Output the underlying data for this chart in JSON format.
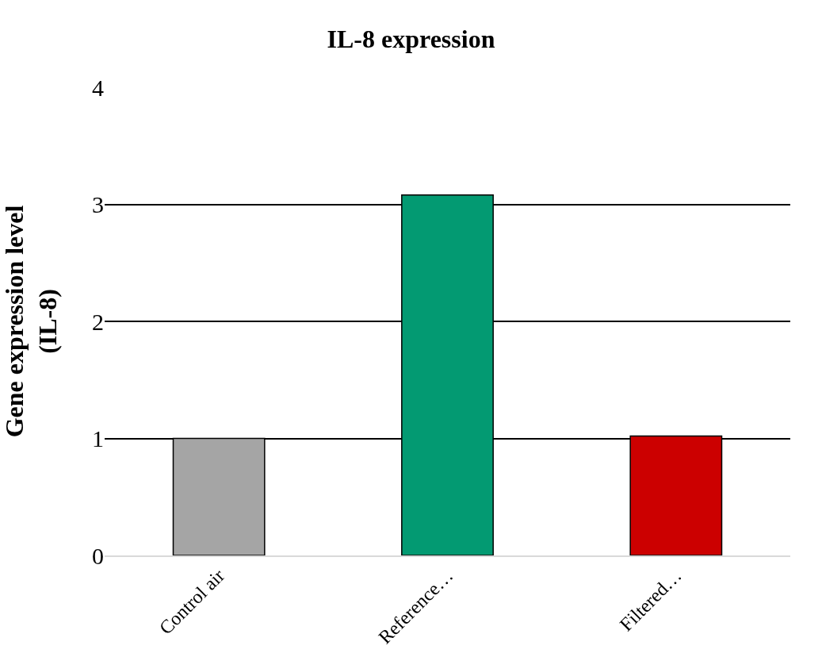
{
  "chart_data": {
    "type": "bar",
    "title": "IL-8 expression",
    "ylabel": "Gene expression level\n(IL-8)",
    "categories": [
      "Control air",
      "Reference…",
      "Filtered…"
    ],
    "values": [
      1.0,
      3.08,
      1.02
    ],
    "colors": [
      "#a5a5a5",
      "#039a72",
      "#cc0000"
    ],
    "ylim": [
      0,
      4
    ],
    "yticks": [
      0,
      1,
      2,
      3,
      4
    ],
    "grid": "y",
    "legend": false
  }
}
